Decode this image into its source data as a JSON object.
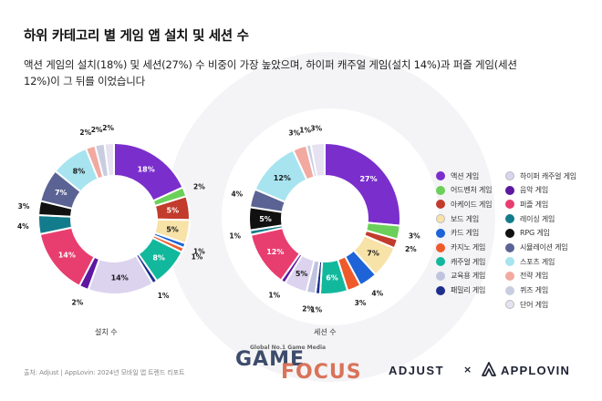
{
  "title": "하위 카테고리 별 게임 앱 설치 및 세션 수",
  "subtitle": "액션 게임의 설치(18%) 및 세션(27%) 수 비중이 가장 높았으며, 하이퍼 캐주얼 게임(설치 14%)과 퍼즐 게임(세션 12%)이 그 뒤를 이었습니다",
  "source": "출처: Adjust | AppLovin: 2024년 모바일 앱 트렌드 리포트",
  "logos": {
    "gamefocus_tag": "Global No.1 Game Media",
    "gamefocus_line1": "GAME",
    "gamefocus_line2": "FOCUS",
    "adjust": "ADJUST",
    "times": "×",
    "applovin": "APPLOVIN"
  },
  "colors": {
    "ring_background": "#f4f4f6"
  },
  "chart_data": [
    {
      "type": "pie",
      "variant": "donut",
      "caption": "설치 수",
      "slices": [
        {
          "category": "액션 게임",
          "value": 18,
          "label": "18%",
          "color": "#7a2fcc"
        },
        {
          "category": "어드벤처 게임",
          "value": 2,
          "label": "2%",
          "color": "#6bd05a"
        },
        {
          "category": "아케이드 게임",
          "value": 5,
          "label": "5%",
          "color": "#c23b2c"
        },
        {
          "category": "보드 게임",
          "value": 5,
          "label": "5%",
          "color": "#f7e2a8"
        },
        {
          "category": "카드 게임",
          "value": 1,
          "label": "1%",
          "color": "#1e63d8"
        },
        {
          "category": "카지노 게임",
          "value": 1,
          "label": "1%",
          "color": "#ef5a2a"
        },
        {
          "category": "캐주얼 게임",
          "value": 8,
          "label": "8%",
          "color": "#12b89c"
        },
        {
          "category": "패밀리 게임",
          "value": 1,
          "label": "1%",
          "color": "#1d2e8c"
        },
        {
          "category": "하이퍼 캐주얼 게임",
          "value": 14,
          "label": "14%",
          "color": "#dcd3ef"
        },
        {
          "category": "음악 게임",
          "value": 2,
          "label": "2%",
          "color": "#5d17a0"
        },
        {
          "category": "퍼즐 게임",
          "value": 14,
          "label": "14%",
          "color": "#e83d6f"
        },
        {
          "category": "레이싱 게임",
          "value": 4,
          "label": "4%",
          "color": "#137c8c"
        },
        {
          "category": "RPG 게임",
          "value": 3,
          "label": "3%",
          "color": "#111111"
        },
        {
          "category": "시뮬레이션 게임",
          "value": 7,
          "label": "7%",
          "color": "#5a6394"
        },
        {
          "category": "스포츠 게임",
          "value": 8,
          "label": "8%",
          "color": "#a7e4f0"
        },
        {
          "category": "전략 게임",
          "value": 2,
          "label": "2%",
          "color": "#f2a9a0"
        },
        {
          "category": "퀴즈 게임",
          "value": 2,
          "label": "2%",
          "color": "#c9cde0"
        },
        {
          "category": "단어 게임",
          "value": 2,
          "label": "2%",
          "color": "#e6e2f2"
        }
      ]
    },
    {
      "type": "pie",
      "variant": "donut",
      "caption": "세션 수",
      "slices": [
        {
          "category": "액션 게임",
          "value": 27,
          "label": "27%",
          "color": "#7a2fcc"
        },
        {
          "category": "어드벤처 게임",
          "value": 3,
          "label": "3%",
          "color": "#6bd05a"
        },
        {
          "category": "아케이드 게임",
          "value": 2,
          "label": "2%",
          "color": "#c23b2c"
        },
        {
          "category": "보드 게임",
          "value": 7,
          "label": "7%",
          "color": "#f7e2a8"
        },
        {
          "category": "카드 게임",
          "value": 4,
          "label": "4%",
          "color": "#1e63d8"
        },
        {
          "category": "카지노 게임",
          "value": 3,
          "label": "3%",
          "color": "#ef5a2a"
        },
        {
          "category": "캐주얼 게임",
          "value": 6,
          "label": "6%",
          "color": "#12b89c"
        },
        {
          "category": "패밀리 게임",
          "value": 1,
          "label": "1%",
          "color": "#1d2e8c"
        },
        {
          "category": "교육용 게임",
          "value": 2,
          "label": "2%",
          "color": "#bfc3de"
        },
        {
          "category": "하이퍼 캐주얼 게임",
          "value": 5,
          "label": "5%",
          "color": "#dcd3ef"
        },
        {
          "category": "음악 게임",
          "value": 1,
          "label": "1%",
          "color": "#5d17a0"
        },
        {
          "category": "퍼즐 게임",
          "value": 12,
          "label": "12%",
          "color": "#e83d6f"
        },
        {
          "category": "레이싱 게임",
          "value": 1,
          "label": "1%",
          "color": "#137c8c"
        },
        {
          "category": "RPG 게임",
          "value": 5,
          "label": "5%",
          "color": "#111111"
        },
        {
          "category": "시뮬레이션 게임",
          "value": 4,
          "label": "4%",
          "color": "#5a6394"
        },
        {
          "category": "스포츠 게임",
          "value": 12,
          "label": "12%",
          "color": "#a7e4f0"
        },
        {
          "category": "전략 게임",
          "value": 3,
          "label": "3%",
          "color": "#f2a9a0"
        },
        {
          "category": "퀴즈 게임",
          "value": 1,
          "label": "1%",
          "color": "#c9cde0"
        },
        {
          "category": "단어 게임",
          "value": 3,
          "label": "3%",
          "color": "#e6e2f2"
        }
      ]
    }
  ],
  "legend": [
    {
      "label": "액션 게임",
      "color": "#7a2fcc"
    },
    {
      "label": "어드벤처 게임",
      "color": "#6bd05a"
    },
    {
      "label": "아케이드 게임",
      "color": "#c23b2c"
    },
    {
      "label": "보드 게임",
      "color": "#f7e2a8"
    },
    {
      "label": "카드 게임",
      "color": "#1e63d8"
    },
    {
      "label": "카지노 게임",
      "color": "#ef5a2a"
    },
    {
      "label": "캐주얼 게임",
      "color": "#12b89c"
    },
    {
      "label": "교육용 게임",
      "color": "#bfc3de"
    },
    {
      "label": "패밀리 게임",
      "color": "#1d2e8c"
    },
    {
      "label": "하이퍼 캐주얼 게임",
      "color": "#dcd3ef"
    },
    {
      "label": "음악 게임",
      "color": "#5d17a0"
    },
    {
      "label": "퍼즐 게임",
      "color": "#e83d6f"
    },
    {
      "label": "레이싱 게임",
      "color": "#137c8c"
    },
    {
      "label": "RPG 게임",
      "color": "#111111"
    },
    {
      "label": "시뮬레이션 게임",
      "color": "#5a6394"
    },
    {
      "label": "스포츠 게임",
      "color": "#a7e4f0"
    },
    {
      "label": "전략 게임",
      "color": "#f2a9a0"
    },
    {
      "label": "퀴즈 게임",
      "color": "#c9cde0"
    },
    {
      "label": "단어 게임",
      "color": "#e6e2f2"
    }
  ]
}
